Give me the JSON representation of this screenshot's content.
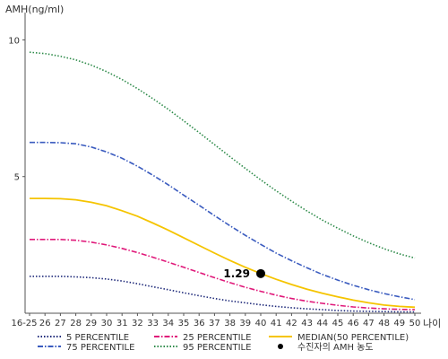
{
  "chart_data": {
    "type": "line",
    "ylabel": "AMH(ng/ml)",
    "xlabel": "나이",
    "x": [
      "16-25",
      "26",
      "27",
      "28",
      "29",
      "30",
      "31",
      "32",
      "33",
      "34",
      "35",
      "36",
      "37",
      "38",
      "39",
      "40",
      "41",
      "42",
      "43",
      "44",
      "45",
      "46",
      "47",
      "48",
      "49",
      "50"
    ],
    "ylim": [
      0,
      11
    ],
    "yticks": [
      5,
      10
    ],
    "grid": false,
    "legend_position": "bottom",
    "series": [
      {
        "name": "5 PERCENTILE",
        "color": "#1f2a7a",
        "style": "dotted",
        "values": [
          1.35,
          1.35,
          1.35,
          1.33,
          1.3,
          1.25,
          1.18,
          1.08,
          0.97,
          0.86,
          0.75,
          0.64,
          0.54,
          0.45,
          0.38,
          0.31,
          0.25,
          0.2,
          0.16,
          0.13,
          0.1,
          0.08,
          0.07,
          0.06,
          0.05,
          0.05
        ]
      },
      {
        "name": "25 PERCENTILE",
        "color": "#e0197a",
        "style": "dashdot",
        "values": [
          2.7,
          2.7,
          2.7,
          2.67,
          2.6,
          2.5,
          2.37,
          2.22,
          2.05,
          1.87,
          1.68,
          1.49,
          1.3,
          1.12,
          0.95,
          0.8,
          0.66,
          0.54,
          0.44,
          0.36,
          0.29,
          0.23,
          0.19,
          0.16,
          0.14,
          0.13
        ]
      },
      {
        "name": "MEDIAN(50 PERCENTILE)",
        "color": "#f5c400",
        "style": "solid",
        "values": [
          4.2,
          4.2,
          4.19,
          4.15,
          4.06,
          3.93,
          3.75,
          3.55,
          3.3,
          3.04,
          2.76,
          2.48,
          2.2,
          1.93,
          1.68,
          1.45,
          1.24,
          1.05,
          0.88,
          0.73,
          0.6,
          0.48,
          0.38,
          0.3,
          0.25,
          0.22
        ]
      },
      {
        "name": "75 PERCENTILE",
        "color": "#3a5bbf",
        "style": "dashdot",
        "values": [
          6.25,
          6.25,
          6.24,
          6.2,
          6.08,
          5.9,
          5.67,
          5.38,
          5.05,
          4.7,
          4.32,
          3.95,
          3.57,
          3.2,
          2.85,
          2.52,
          2.2,
          1.92,
          1.66,
          1.42,
          1.21,
          1.02,
          0.86,
          0.72,
          0.6,
          0.5
        ]
      },
      {
        "name": "95 PERCENTILE",
        "color": "#2e8b4a",
        "style": "dotted",
        "values": [
          9.55,
          9.5,
          9.4,
          9.27,
          9.08,
          8.84,
          8.55,
          8.22,
          7.85,
          7.46,
          7.04,
          6.61,
          6.17,
          5.73,
          5.3,
          4.88,
          4.48,
          4.1,
          3.74,
          3.41,
          3.11,
          2.83,
          2.58,
          2.36,
          2.17,
          2.02
        ]
      }
    ],
    "marker": {
      "name": "수진자의 AMH 농도",
      "x": "40",
      "y": 1.45,
      "label": "1.29",
      "color": "#000000"
    }
  }
}
